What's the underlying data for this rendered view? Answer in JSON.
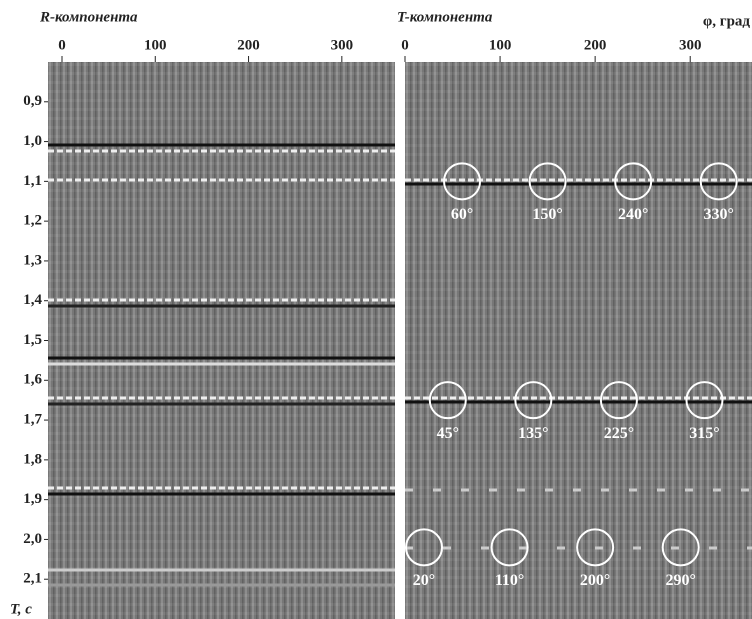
{
  "chart_data": [
    {
      "type": "seismogram",
      "title": "R-компонента",
      "xlim": [
        -15,
        357
      ],
      "xticks": [
        0,
        100,
        200,
        300
      ],
      "ylim": [
        0.8,
        2.2
      ],
      "yticks": [
        {
          "value": 0.9,
          "label": "0,9"
        },
        {
          "value": 1.0,
          "label": "1,0"
        },
        {
          "value": 1.1,
          "label": "1,1"
        },
        {
          "value": 1.2,
          "label": "1,2"
        },
        {
          "value": 1.3,
          "label": "1,3"
        },
        {
          "value": 1.4,
          "label": "1,4"
        },
        {
          "value": 1.5,
          "label": "1,5"
        },
        {
          "value": 1.6,
          "label": "1,6"
        },
        {
          "value": 1.7,
          "label": "1,7"
        },
        {
          "value": 1.8,
          "label": "1,8"
        },
        {
          "value": 1.9,
          "label": "1,9"
        },
        {
          "value": 2.0,
          "label": "2,0"
        },
        {
          "value": 2.1,
          "label": "2,1"
        }
      ],
      "ylabel": "T, с"
    },
    {
      "type": "seismogram",
      "title": "T-компонента",
      "xlabel": "φ, град",
      "xlim": [
        0,
        365
      ],
      "xticks": [
        0,
        100,
        200,
        300
      ],
      "ylim": [
        0.8,
        2.2
      ],
      "annotations": [
        {
          "x": 60,
          "y": 1.1,
          "label": "60°"
        },
        {
          "x": 150,
          "y": 1.1,
          "label": "150°"
        },
        {
          "x": 240,
          "y": 1.1,
          "label": "240°"
        },
        {
          "x": 330,
          "y": 1.1,
          "label": "330°"
        },
        {
          "x": 45,
          "y": 1.65,
          "label": "45°"
        },
        {
          "x": 135,
          "y": 1.65,
          "label": "135°"
        },
        {
          "x": 225,
          "y": 1.65,
          "label": "225°"
        },
        {
          "x": 315,
          "y": 1.65,
          "label": "315°"
        },
        {
          "x": 20,
          "y": 2.02,
          "label": "20°"
        },
        {
          "x": 110,
          "y": 2.02,
          "label": "110°"
        },
        {
          "x": 200,
          "y": 2.02,
          "label": "200°"
        },
        {
          "x": 290,
          "y": 2.02,
          "label": "290°"
        }
      ]
    }
  ]
}
